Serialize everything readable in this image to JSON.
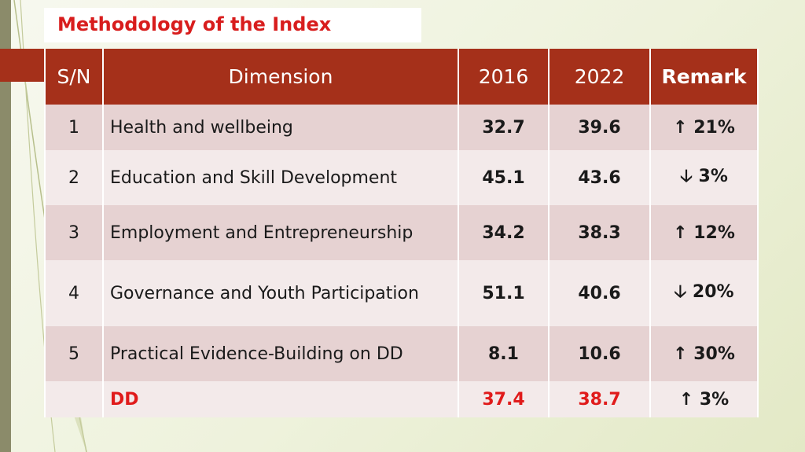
{
  "title": "Methodology of the Index",
  "table": {
    "headers": {
      "sn": "S/N",
      "dimension": "Dimension",
      "y2016": "2016",
      "y2022": "2022",
      "remark": "Remark"
    },
    "rows": [
      {
        "sn": "1",
        "dimension": "Health and wellbeing",
        "y2016": "32.7",
        "y2022": "39.6",
        "remark": "↑ 21%"
      },
      {
        "sn": "2",
        "dimension": "Education and Skill Development",
        "y2016": "45.1",
        "y2022": "43.6",
        "remark": "🡣 3%"
      },
      {
        "sn": "3",
        "dimension": "Employment and Entrepreneurship",
        "y2016": "34.2",
        "y2022": "38.3",
        "remark": "↑ 12%"
      },
      {
        "sn": "4",
        "dimension": "Governance and Youth Participation",
        "y2016": "51.1",
        "y2022": "40.6",
        "remark": "🡣 20%"
      },
      {
        "sn": "5",
        "dimension": "Practical Evidence-Building on DD",
        "y2016": "8.1",
        "y2022": "10.6",
        "remark": "↑ 30%"
      }
    ],
    "total": {
      "sn": "",
      "dimension": "DD",
      "y2016": "37.4",
      "y2022": "38.7",
      "remark": "↑ 3%"
    }
  }
}
